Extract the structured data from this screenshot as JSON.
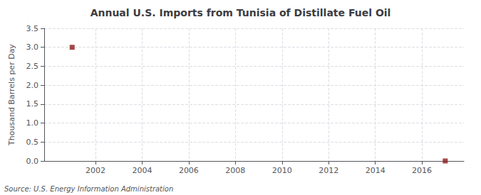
{
  "chart_data": {
    "type": "scatter",
    "title": "Annual U.S. Imports from Tunisia of Distillate Fuel Oil",
    "ylabel": "Thousand Barrels per Day",
    "annotations": [
      "Source: U.S. Energy Information Administration"
    ],
    "x": [
      2001,
      2017
    ],
    "values": [
      3.0,
      0.0
    ],
    "color": "#8b1a1a",
    "marker": "square",
    "xlim": [
      1999.8,
      2017.8
    ],
    "ylim": [
      0.0,
      3.5
    ],
    "xticks": [
      2002,
      2004,
      2006,
      2008,
      2010,
      2012,
      2014,
      2016
    ],
    "yticks": [
      {
        "value": 0.0,
        "label": "0.0"
      },
      0.5,
      {
        "value": 1.0,
        "label": "1.0"
      },
      1.5,
      {
        "value": 2.0,
        "label": "2.0"
      },
      2.5,
      {
        "value": 3.0,
        "label": "3.0"
      },
      3.5
    ],
    "grid": true
  }
}
